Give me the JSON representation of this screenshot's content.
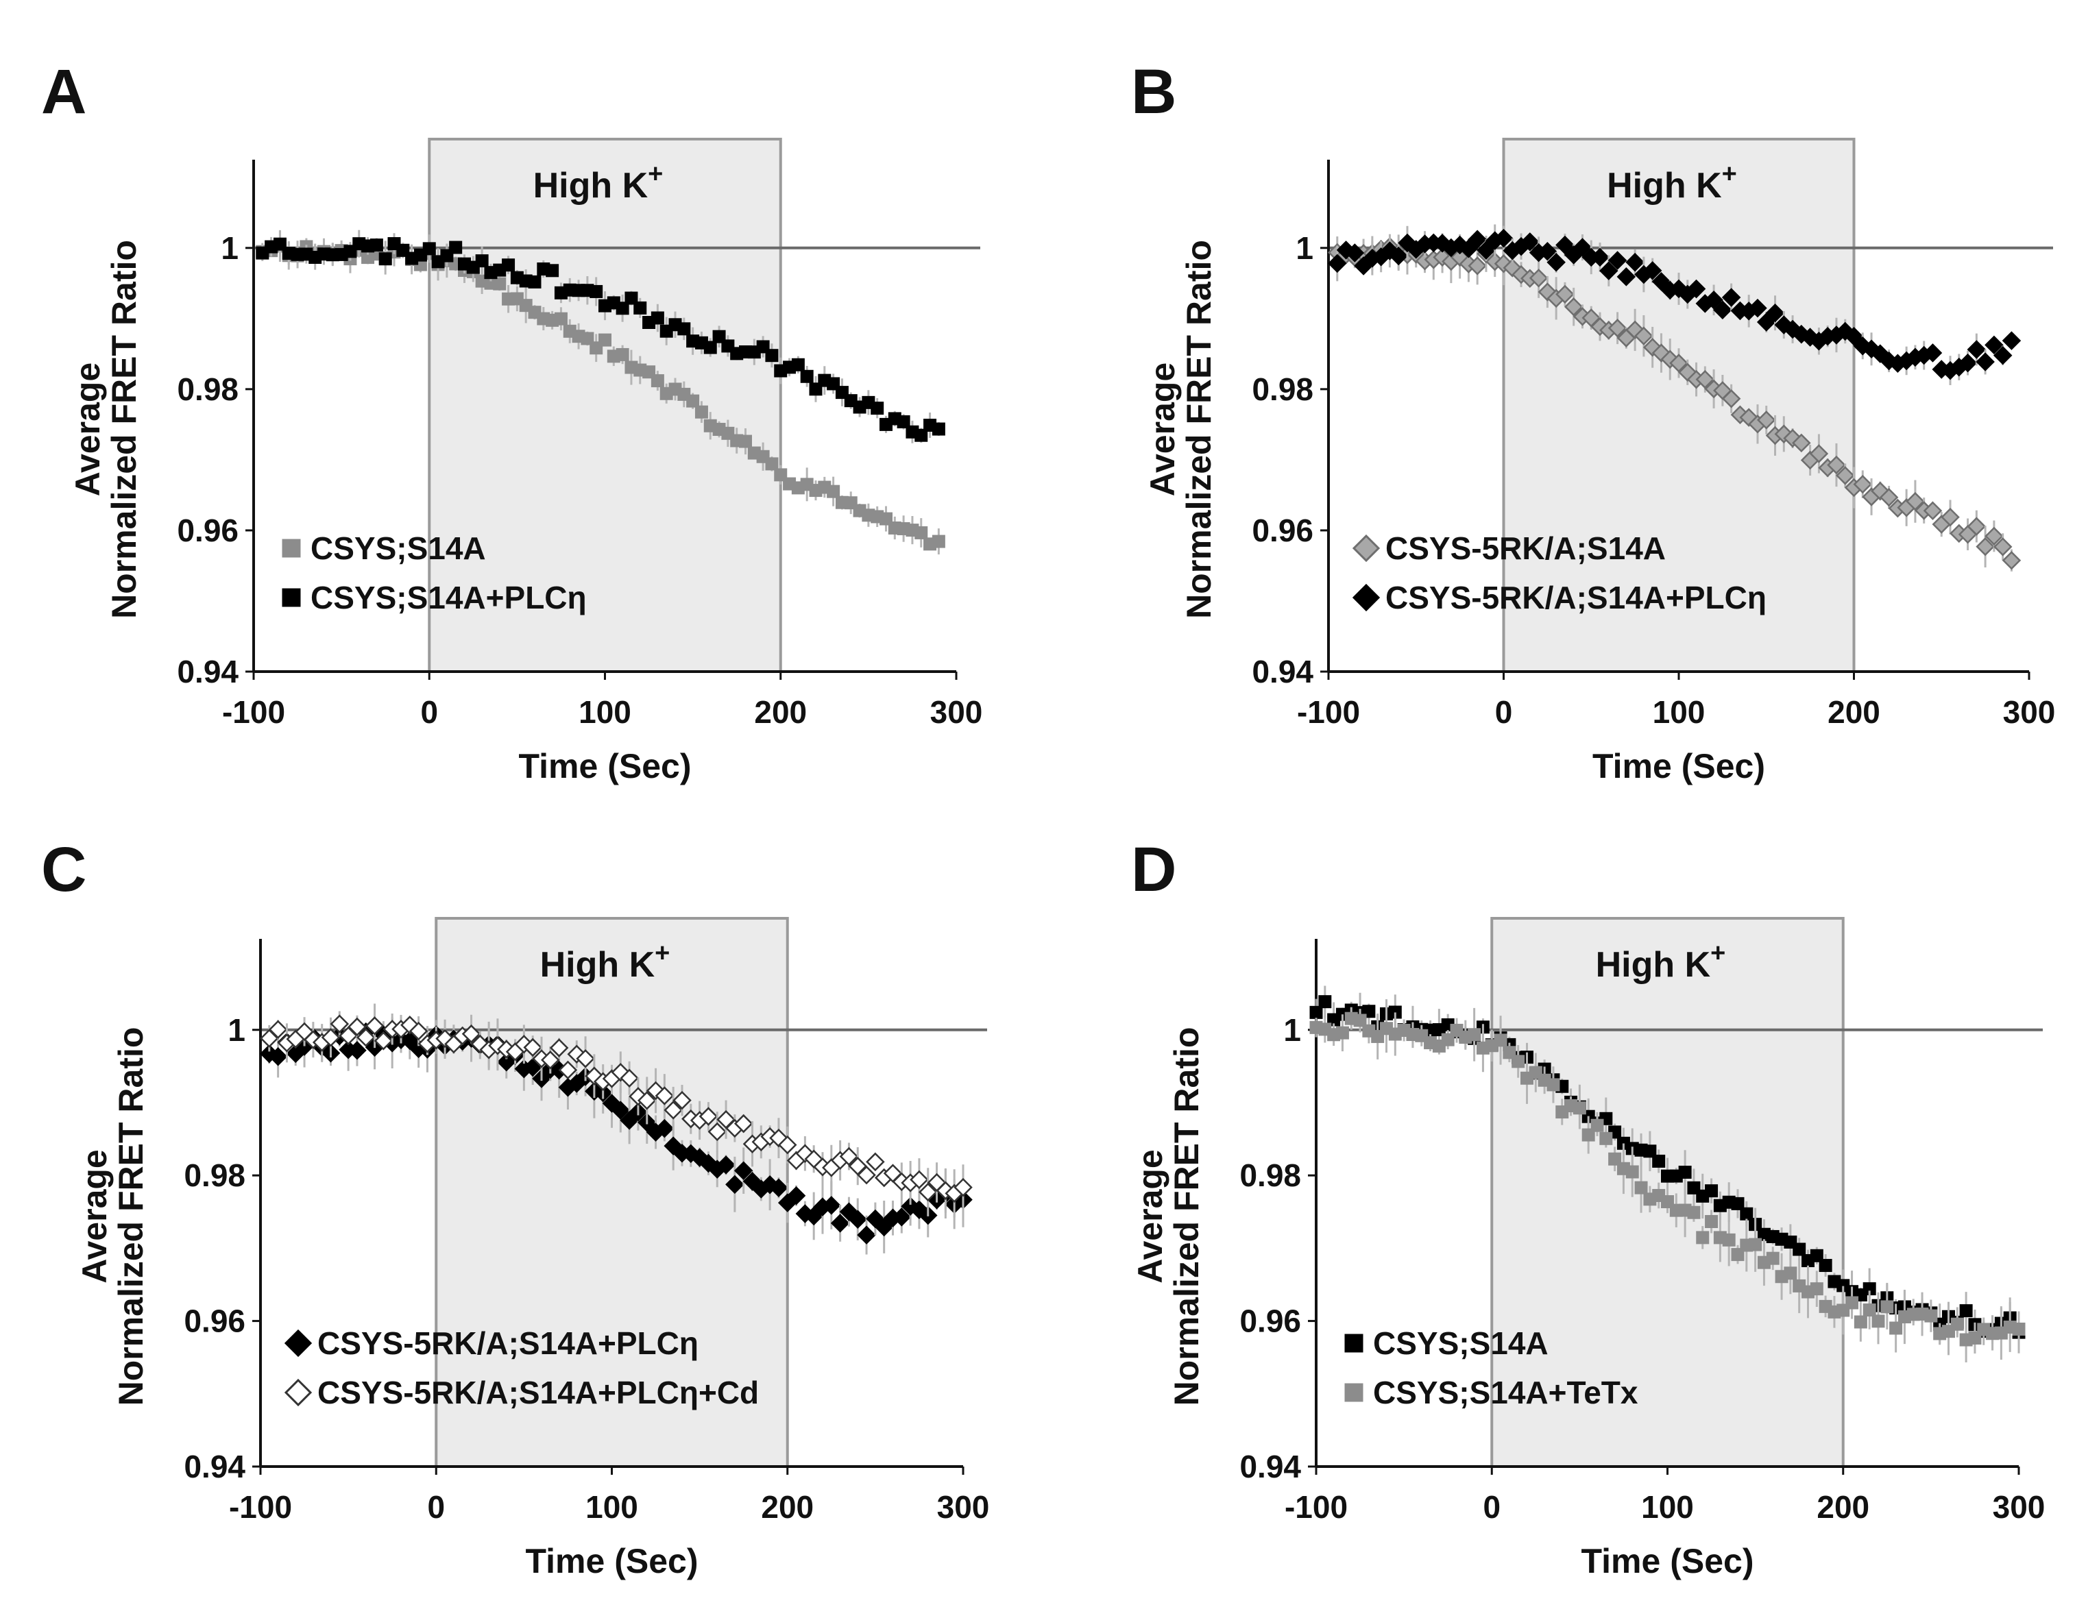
{
  "chart_data": [
    {
      "panel": "A",
      "type": "scatter",
      "title": "",
      "xlabel": "Time (Sec)",
      "ylabel_line1": "Average",
      "ylabel_line2": "Normalized FRET Ratio",
      "xlim": [
        -100,
        300
      ],
      "ylim": [
        0.94,
        1.0125
      ],
      "xticks": [
        -100,
        0,
        100,
        200,
        300
      ],
      "xtick_labels": [
        "-100",
        "0",
        "100",
        "200",
        "300"
      ],
      "yticks": [
        0.94,
        0.96,
        0.98,
        1.0
      ],
      "ytick_labels": [
        "0.94",
        "0.96",
        "0.98",
        "1"
      ],
      "baseline": 1.0,
      "stimulus": {
        "start": 0,
        "end": 200,
        "label": "High K",
        "sup": "+"
      },
      "series": [
        {
          "name": "CSYS;S14A",
          "marker": "square",
          "fill": "#8c8c8c",
          "stroke": "#8c8c8c",
          "knots": [
            [
              -95,
              1.0
            ],
            [
              0,
              0.9985
            ],
            [
              25,
              0.9965
            ],
            [
              50,
              0.993
            ],
            [
              100,
              0.986
            ],
            [
              150,
              0.9775
            ],
            [
              200,
              0.968
            ],
            [
              250,
              0.9625
            ],
            [
              290,
              0.958
            ]
          ],
          "noise": 0.001,
          "err": 0.0018,
          "seed": 11
        },
        {
          "name": "CSYS;S14A+PLCη",
          "marker": "square",
          "fill": "#000000",
          "stroke": "#000000",
          "knots": [
            [
              -95,
              1.0
            ],
            [
              0,
              0.9995
            ],
            [
              50,
              0.997
            ],
            [
              100,
              0.993
            ],
            [
              150,
              0.988
            ],
            [
              200,
              0.984
            ],
            [
              250,
              0.977
            ],
            [
              290,
              0.974
            ]
          ],
          "noise": 0.0014,
          "err": 0.0015,
          "seed": 23
        }
      ]
    },
    {
      "panel": "B",
      "type": "scatter",
      "title": "",
      "xlabel": "Time (Sec)",
      "ylabel_line1": "Average",
      "ylabel_line2": "Normalized FRET Ratio",
      "xlim": [
        -100,
        300
      ],
      "ylim": [
        0.94,
        1.0125
      ],
      "xticks": [
        -100,
        0,
        100,
        200,
        300
      ],
      "xtick_labels": [
        "-100",
        "0",
        "100",
        "200",
        "300"
      ],
      "yticks": [
        0.94,
        0.96,
        0.98,
        1.0
      ],
      "ytick_labels": [
        "0.94",
        "0.96",
        "0.98",
        "1"
      ],
      "baseline": 1.0,
      "stimulus": {
        "start": 0,
        "end": 200,
        "label": "High K",
        "sup": "+"
      },
      "series": [
        {
          "name": "CSYS-5RK/A;S14A",
          "marker": "diamond",
          "fill": "#a8a8a8",
          "stroke": "#6e6e6e",
          "knots": [
            [
              -95,
              1.0
            ],
            [
              0,
              0.9985
            ],
            [
              20,
              0.995
            ],
            [
              50,
              0.9905
            ],
            [
              100,
              0.9845
            ],
            [
              150,
              0.9745
            ],
            [
              200,
              0.9665
            ],
            [
              250,
              0.962
            ],
            [
              290,
              0.957
            ]
          ],
          "noise": 0.0013,
          "err": 0.0022,
          "seed": 37
        },
        {
          "name": "CSYS-5RK/A;S14A+PLCη",
          "marker": "diamond",
          "fill": "#000000",
          "stroke": "#000000",
          "knots": [
            [
              -95,
              0.9985
            ],
            [
              0,
              1.0005
            ],
            [
              50,
              0.9985
            ],
            [
              100,
              0.995
            ],
            [
              150,
              0.99
            ],
            [
              200,
              0.9865
            ],
            [
              250,
              0.9835
            ],
            [
              290,
              0.9855
            ]
          ],
          "noise": 0.0014,
          "err": 0.0018,
          "seed": 41
        }
      ]
    },
    {
      "panel": "C",
      "type": "scatter",
      "title": "",
      "xlabel": "Time (Sec)",
      "ylabel_line1": "Average",
      "ylabel_line2": "Normalized FRET Ratio",
      "xlim": [
        -100,
        300
      ],
      "ylim": [
        0.94,
        1.0125
      ],
      "xticks": [
        -100,
        0,
        100,
        200,
        300
      ],
      "xtick_labels": [
        "-100",
        "0",
        "100",
        "200",
        "300"
      ],
      "yticks": [
        0.94,
        0.96,
        0.98,
        1.0
      ],
      "ytick_labels": [
        "0.94",
        "0.96",
        "0.98",
        "1"
      ],
      "baseline": 1.0,
      "stimulus": {
        "start": 0,
        "end": 200,
        "label": "High K",
        "sup": "+"
      },
      "series": [
        {
          "name": "CSYS-5RK/A;S14A+PLCη",
          "marker": "diamond",
          "fill": "#000000",
          "stroke": "#000000",
          "knots": [
            [
              -95,
              0.9975
            ],
            [
              0,
              0.999
            ],
            [
              20,
              1.0
            ],
            [
              50,
              0.9955
            ],
            [
              100,
              0.9905
            ],
            [
              150,
              0.9825
            ],
            [
              200,
              0.9765
            ],
            [
              250,
              0.973
            ],
            [
              300,
              0.977
            ]
          ],
          "noise": 0.0016,
          "err": 0.0028,
          "seed": 53
        },
        {
          "name": "CSYS-5RK/A;S14A+PLCη+Cd",
          "marker": "diamond",
          "fill": "#ffffff",
          "stroke": "#333333",
          "knots": [
            [
              -95,
              0.9995
            ],
            [
              0,
              0.9995
            ],
            [
              50,
              0.998
            ],
            [
              100,
              0.9935
            ],
            [
              150,
              0.988
            ],
            [
              200,
              0.9835
            ],
            [
              250,
              0.9805
            ],
            [
              300,
              0.978
            ]
          ],
          "noise": 0.0014,
          "err": 0.0024,
          "seed": 67
        }
      ]
    },
    {
      "panel": "D",
      "type": "scatter",
      "title": "",
      "xlabel": "Time (Sec)",
      "ylabel_line1": "Average",
      "ylabel_line2": "Normalized FRET Ratio",
      "xlim": [
        -100,
        300
      ],
      "ylim": [
        0.94,
        1.0125
      ],
      "xticks": [
        -100,
        0,
        100,
        200,
        300
      ],
      "xtick_labels": [
        "-100",
        "0",
        "100",
        "200",
        "300"
      ],
      "yticks": [
        0.94,
        0.96,
        0.98,
        1.0
      ],
      "ytick_labels": [
        "0.94",
        "0.96",
        "0.98",
        "1"
      ],
      "baseline": 1.0,
      "stimulus": {
        "start": 0,
        "end": 200,
        "label": "High K",
        "sup": "+"
      },
      "series": [
        {
          "name": "CSYS;S14A",
          "marker": "square",
          "fill": "#000000",
          "stroke": "#000000",
          "knots": [
            [
              -100,
              1.003
            ],
            [
              0,
              0.999
            ],
            [
              50,
              0.99
            ],
            [
              100,
              0.981
            ],
            [
              150,
              0.974
            ],
            [
              200,
              0.965
            ],
            [
              250,
              0.961
            ],
            [
              300,
              0.959
            ]
          ],
          "noise": 0.0013,
          "err": 0.0022,
          "seed": 79
        },
        {
          "name": "CSYS;S14A+TeTx",
          "marker": "square",
          "fill": "#8c8c8c",
          "stroke": "#8c8c8c",
          "knots": [
            [
              -100,
              1.001
            ],
            [
              0,
              0.9985
            ],
            [
              50,
              0.988
            ],
            [
              100,
              0.9755
            ],
            [
              150,
              0.969
            ],
            [
              200,
              0.9615
            ],
            [
              250,
              0.9595
            ],
            [
              300,
              0.9575
            ]
          ],
          "noise": 0.0015,
          "err": 0.0028,
          "seed": 97
        }
      ]
    }
  ]
}
